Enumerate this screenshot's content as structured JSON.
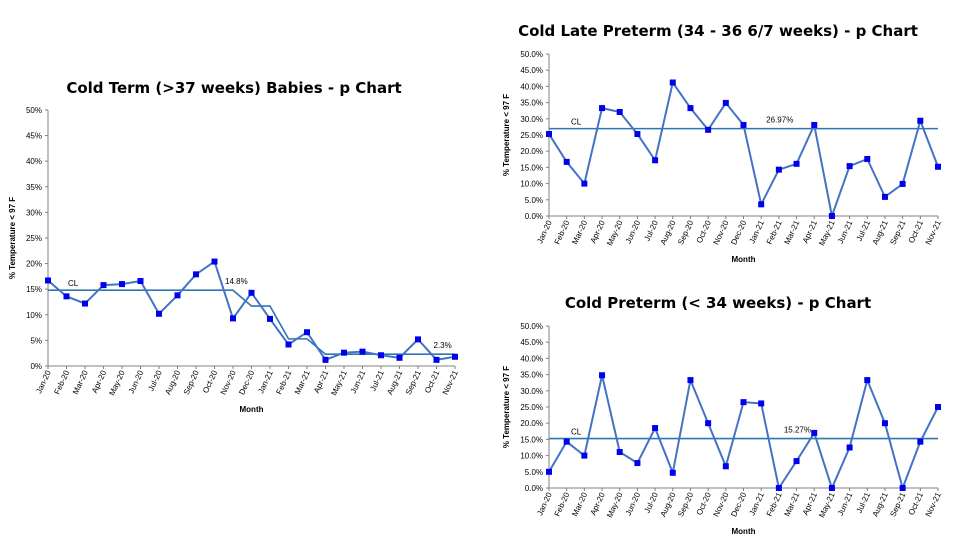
{
  "chart_data": [
    {
      "type": "line",
      "title": "Cold Term (>37 weeks) Babies - p Chart",
      "xlabel": "Month",
      "ylabel": "% Temperature < 97 F",
      "ylim": [
        0,
        50
      ],
      "ytick_step": 5,
      "ytick_format": "int",
      "categories": [
        "Jan-20",
        "Feb-20",
        "Mar-20",
        "Apr-20",
        "May-20",
        "Jun-20",
        "Jul-20",
        "Aug-20",
        "Sep-20",
        "Oct-20",
        "Nov-20",
        "Dec-20",
        "Jan-21",
        "Feb-21",
        "Mar-21",
        "Apr-21",
        "May-21",
        "Jun-21",
        "Jul-21",
        "Aug-21",
        "Sep-21",
        "Oct-21",
        "Nov-21"
      ],
      "series": [
        {
          "values": [
            16.7,
            13.6,
            12.2,
            15.8,
            16.0,
            16.6,
            10.2,
            13.8,
            17.9,
            20.4,
            9.3,
            14.3,
            9.2,
            4.2,
            6.6,
            1.2,
            2.6,
            2.8,
            2.1,
            1.6,
            5.2,
            1.2,
            1.8
          ]
        }
      ],
      "control_line": {
        "label": "CL",
        "values": [
          14.8,
          14.8,
          14.8,
          14.8,
          14.8,
          14.8,
          14.8,
          14.8,
          14.8,
          14.8,
          14.8,
          11.7,
          11.7,
          5.3,
          5.3,
          2.3,
          2.3,
          2.3,
          2.3,
          2.3,
          2.3,
          2.3,
          2.3
        ],
        "annotations": [
          {
            "text": "14.8%",
            "index": 10
          },
          {
            "text": "2.3%",
            "index": 21
          }
        ]
      },
      "colors": {
        "series": "#4472C4",
        "marker": "#0000EE",
        "control_line": "#2E75B6"
      }
    },
    {
      "type": "line",
      "title": "Cold Late Preterm (34 - 36 6/7 weeks) - p Chart",
      "xlabel": "Month",
      "ylabel": "% Temperature < 97 F",
      "ylim": [
        0,
        50
      ],
      "ytick_step": 5,
      "ytick_format": "dec1",
      "categories": [
        "Jan-20",
        "Feb-20",
        "Mar-20",
        "Apr-20",
        "May-20",
        "Jun-20",
        "Jul-20",
        "Aug-20",
        "Sep-20",
        "Oct-20",
        "Nov-20",
        "Dec-20",
        "Jan-21",
        "Feb-21",
        "Mar-21",
        "Apr-21",
        "May-21",
        "Jun-21",
        "Jul-21",
        "Aug-21",
        "Sep-21",
        "Oct-21",
        "Nov-21"
      ],
      "series": [
        {
          "values": [
            25.3,
            16.7,
            10.0,
            33.3,
            32.1,
            25.3,
            17.2,
            41.2,
            33.3,
            26.6,
            34.9,
            28.1,
            3.6,
            14.3,
            16.1,
            28.1,
            0.0,
            15.4,
            17.6,
            5.9,
            9.9,
            29.4,
            15.2
          ]
        }
      ],
      "control_line": {
        "label": "CL",
        "values": [
          26.97,
          26.97,
          26.97,
          26.97,
          26.97,
          26.97,
          26.97,
          26.97,
          26.97,
          26.97,
          26.97,
          26.97,
          26.97,
          26.97,
          26.97,
          26.97,
          26.97,
          26.97,
          26.97,
          26.97,
          26.97,
          26.97,
          26.97
        ],
        "annotations": [
          {
            "text": "26.97%",
            "index": 12
          }
        ]
      },
      "colors": {
        "series": "#4472C4",
        "marker": "#0000EE",
        "control_line": "#2E75B6"
      }
    },
    {
      "type": "line",
      "title": "Cold Preterm (< 34 weeks) - p Chart",
      "xlabel": "Month",
      "ylabel": "% Temperature < 97 F",
      "ylim": [
        0,
        50
      ],
      "ytick_step": 5,
      "ytick_format": "dec1",
      "categories": [
        "Jan-20",
        "Feb-20",
        "Mar-20",
        "Apr-20",
        "May-20",
        "Jun-20",
        "Jul-20",
        "Aug-20",
        "Sep-20",
        "Oct-20",
        "Nov-20",
        "Dec-20",
        "Jan-21",
        "Feb-21",
        "Mar-21",
        "Apr-21",
        "May-21",
        "Jun-21",
        "Jul-21",
        "Aug-21",
        "Sep-21",
        "Oct-21",
        "Nov-21"
      ],
      "series": [
        {
          "values": [
            5.0,
            14.3,
            10.0,
            34.8,
            11.1,
            7.7,
            18.5,
            4.7,
            33.3,
            20.0,
            6.7,
            26.5,
            26.1,
            0.0,
            8.3,
            17.0,
            0.0,
            12.5,
            33.3,
            20.0,
            0.0,
            14.3,
            25.0
          ]
        }
      ],
      "control_line": {
        "label": "CL",
        "values": [
          15.27,
          15.27,
          15.27,
          15.27,
          15.27,
          15.27,
          15.27,
          15.27,
          15.27,
          15.27,
          15.27,
          15.27,
          15.27,
          15.27,
          15.27,
          15.27,
          15.27,
          15.27,
          15.27,
          15.27,
          15.27,
          15.27,
          15.27
        ],
        "annotations": [
          {
            "text": "15.27%",
            "index": 13
          }
        ]
      },
      "colors": {
        "series": "#4472C4",
        "marker": "#0000EE",
        "control_line": "#2E75B6"
      }
    }
  ]
}
